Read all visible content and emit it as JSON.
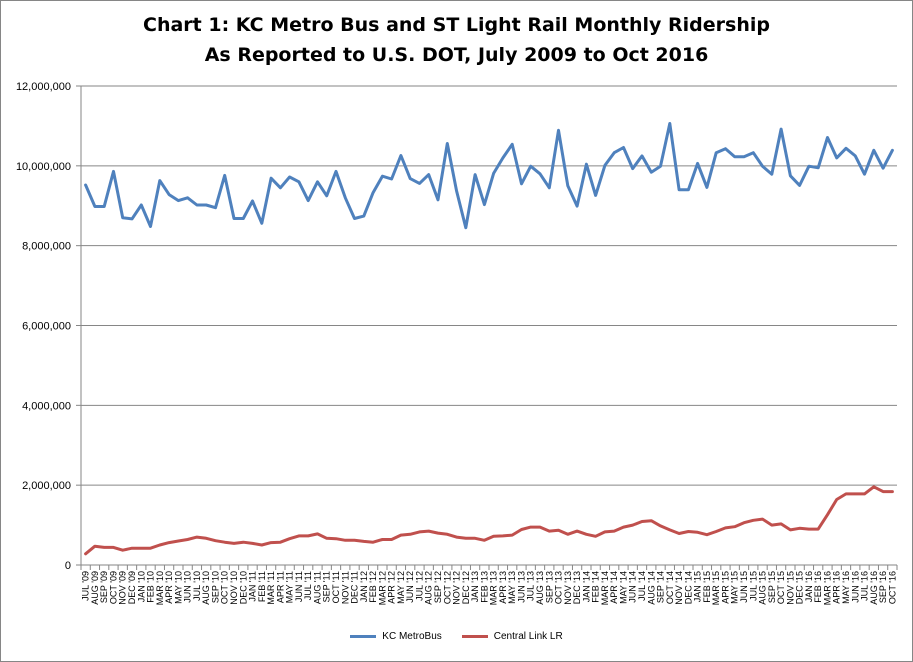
{
  "chart_data": {
    "type": "line",
    "title": "Chart 1: KC Metro Bus and ST Light Rail Monthly Ridership",
    "subtitle": "As Reported to U.S. DOT, July 2009 to Oct 2016",
    "xlabel": "",
    "ylabel": "",
    "ylim": [
      0,
      12000000
    ],
    "yticks": [
      0,
      2000000,
      4000000,
      6000000,
      8000000,
      10000000,
      12000000
    ],
    "ytick_labels": [
      "0",
      "2,000,000",
      "4,000,000",
      "6,000,000",
      "8,000,000",
      "10,000,000",
      "12,000,000"
    ],
    "grid": "horizontal",
    "legend_position": "bottom",
    "categories": [
      "JUL '09",
      "AUG '09",
      "SEP '09",
      "OCT '09",
      "NOV '09",
      "DEC '09",
      "JAN '10",
      "FEB '10",
      "MAR '10",
      "APR '10",
      "MAY '10",
      "JUN '10",
      "JUL '10",
      "AUG '10",
      "SEP '10",
      "OCT '10",
      "NOV '10",
      "DEC '10",
      "JAN '11",
      "FEB '11",
      "MAR '11",
      "APR '11",
      "MAY '11",
      "JUN '11",
      "JUL '11",
      "AUG '11",
      "SEP '11",
      "OCT '11",
      "NOV '11",
      "DEC '11",
      "JAN '12",
      "FEB '12",
      "MAR '12",
      "APR '12",
      "MAY '12",
      "JUN '12",
      "JUL '12",
      "AUG '12",
      "SEP '12",
      "OCT '12",
      "NOV '12",
      "DEC '12",
      "JAN '13",
      "FEB '13",
      "MAR '13",
      "APR '13",
      "MAY '13",
      "JUN '13",
      "JUL '13",
      "AUG '13",
      "SEP '13",
      "OCT '13",
      "NOV '13",
      "DEC '13",
      "JAN '14",
      "FEB '14",
      "MAR '14",
      "APR '14",
      "MAY '14",
      "JUN '14",
      "JUL '14",
      "AUG '14",
      "SEP '14",
      "OCT '14",
      "NOV '14",
      "DEC '14",
      "JAN '15",
      "FEB '15",
      "MAR '15",
      "APR '15",
      "MAY '15",
      "JUN '15",
      "JUL '15",
      "AUG '15",
      "SEP '15",
      "OCT '15",
      "NOV '15",
      "DEC '15",
      "JAN '16",
      "FEB '16",
      "MAR '16",
      "APR '16",
      "MAY '16",
      "JUN '16",
      "JUL '16",
      "AUG '16",
      "SEP '16",
      "OCT '16"
    ],
    "series": [
      {
        "name": "KC MetroBus",
        "color": "#4F81BD",
        "values": [
          9520000,
          8980000,
          8980000,
          9860000,
          8700000,
          8670000,
          9020000,
          8480000,
          9630000,
          9280000,
          9130000,
          9200000,
          9020000,
          9020000,
          8950000,
          9760000,
          8680000,
          8680000,
          9120000,
          8560000,
          9690000,
          9450000,
          9720000,
          9600000,
          9130000,
          9600000,
          9250000,
          9860000,
          9200000,
          8680000,
          8740000,
          9330000,
          9740000,
          9670000,
          10260000,
          9680000,
          9560000,
          9780000,
          9150000,
          10560000,
          9380000,
          8450000,
          9780000,
          9030000,
          9810000,
          10200000,
          10540000,
          9550000,
          9990000,
          9800000,
          9450000,
          10890000,
          9500000,
          8990000,
          10040000,
          9260000,
          10010000,
          10330000,
          10460000,
          9930000,
          10250000,
          9840000,
          9990000,
          11060000,
          9400000,
          9400000,
          10060000,
          9460000,
          10330000,
          10430000,
          10230000,
          10230000,
          10330000,
          9990000,
          9790000,
          10920000,
          9750000,
          9510000,
          9990000,
          9950000,
          10710000,
          10200000,
          10440000,
          10250000,
          9790000,
          10390000,
          9940000,
          10390000
        ]
      },
      {
        "name": "Central Link LR",
        "color": "#C0504D",
        "values": [
          280000,
          470000,
          440000,
          440000,
          370000,
          420000,
          420000,
          420000,
          500000,
          560000,
          600000,
          640000,
          700000,
          670000,
          610000,
          570000,
          540000,
          570000,
          540000,
          500000,
          560000,
          570000,
          660000,
          730000,
          730000,
          780000,
          670000,
          660000,
          620000,
          620000,
          590000,
          570000,
          640000,
          640000,
          750000,
          770000,
          830000,
          850000,
          800000,
          770000,
          700000,
          670000,
          670000,
          620000,
          720000,
          730000,
          750000,
          890000,
          950000,
          950000,
          850000,
          870000,
          770000,
          850000,
          770000,
          720000,
          830000,
          850000,
          950000,
          1000000,
          1090000,
          1110000,
          980000,
          880000,
          790000,
          840000,
          820000,
          760000,
          840000,
          930000,
          960000,
          1060000,
          1120000,
          1150000,
          1000000,
          1030000,
          880000,
          920000,
          900000,
          900000,
          1260000,
          1640000,
          1780000,
          1780000,
          1780000,
          1960000,
          1840000,
          1840000
        ]
      }
    ]
  }
}
